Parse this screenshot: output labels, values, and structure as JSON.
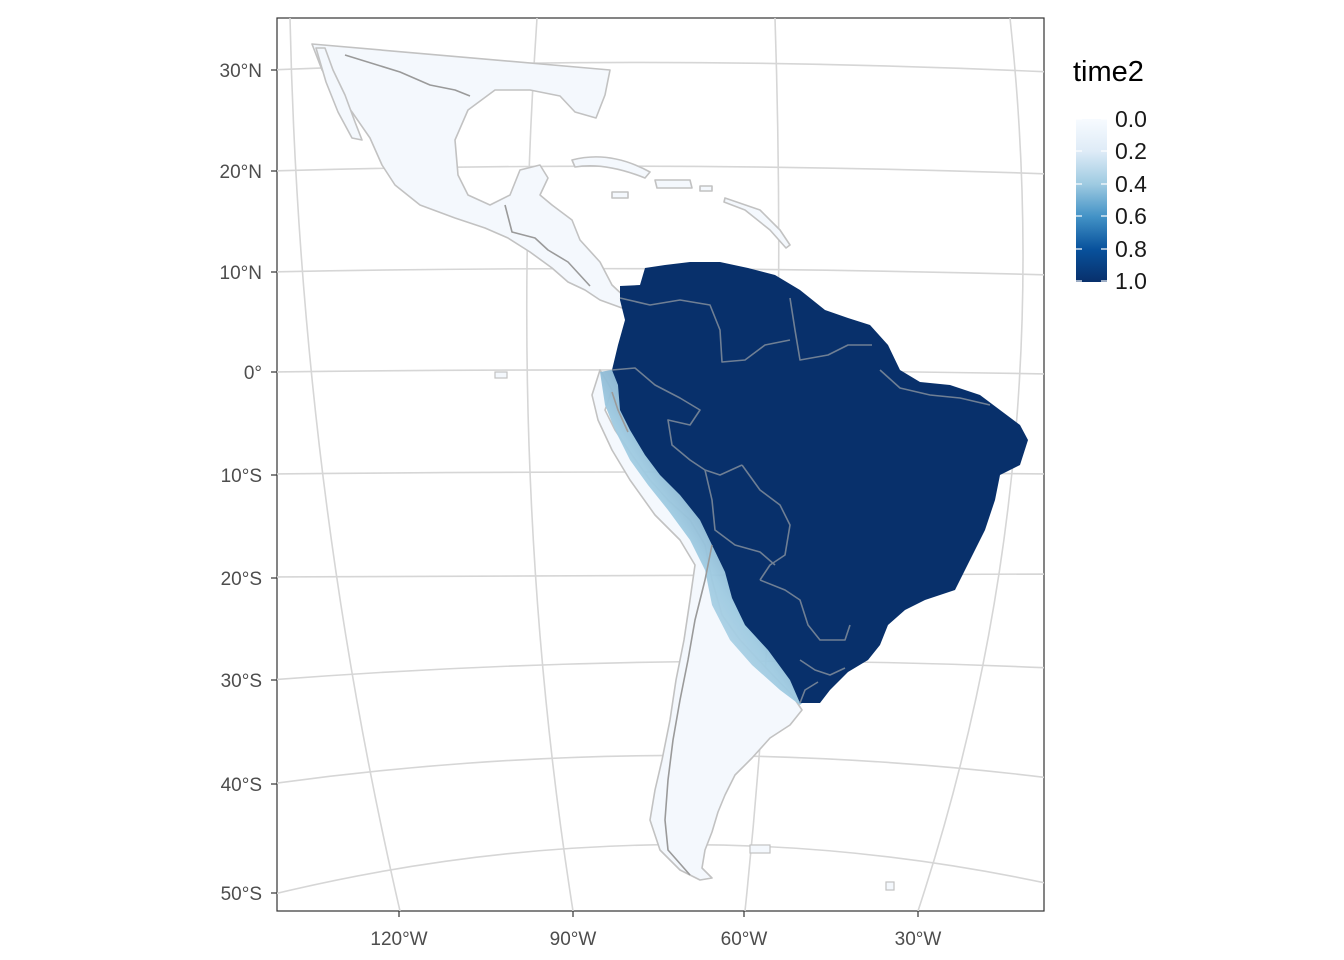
{
  "legend": {
    "title": "time2",
    "labels": [
      "0.0",
      "0.2",
      "0.4",
      "0.6",
      "0.8",
      "1.0"
    ],
    "colors": [
      "#f7fbff",
      "#deebf7",
      "#9ecae1",
      "#4292c6",
      "#08519c",
      "#08306b"
    ]
  },
  "axes": {
    "lat_labels": [
      "30°N",
      "20°N",
      "10°N",
      "0°",
      "10°S",
      "20°S",
      "30°S",
      "40°S",
      "50°S"
    ],
    "lon_labels": [
      "120°W",
      "90°W",
      "60°W",
      "30°W"
    ]
  },
  "map": {
    "variable": "time2",
    "high_region_value": 1.0,
    "low_region_value": 0.0,
    "land_color": "#f4f8fd",
    "high_color": "#08306b",
    "border_color": "#9a9a9a",
    "graticule_color": "#d6d6d6"
  }
}
